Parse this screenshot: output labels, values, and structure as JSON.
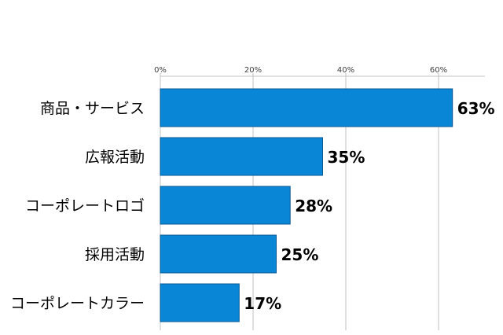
{
  "chart_data": {
    "type": "bar",
    "orientation": "horizontal",
    "title": "",
    "xlabel": "",
    "ylabel": "",
    "categories": [
      "商品・サービス",
      "広報活動",
      "コーポレートロゴ",
      "採用活動",
      "コーポレートカラー"
    ],
    "values": [
      63,
      35,
      28,
      25,
      17
    ],
    "data_labels": [
      "63%",
      "35%",
      "28%",
      "25%",
      "17%"
    ],
    "ticks": [
      0,
      20,
      40,
      60
    ],
    "tick_labels": [
      "0%",
      "20%",
      "40%",
      "60%"
    ],
    "xlim": [
      0,
      70
    ],
    "axis_position": "top",
    "grid": true,
    "legend": "none",
    "bar_color": "#0a86d6",
    "bar_border_color": "#0a5a96",
    "grid_color": "#c0c0c0"
  }
}
